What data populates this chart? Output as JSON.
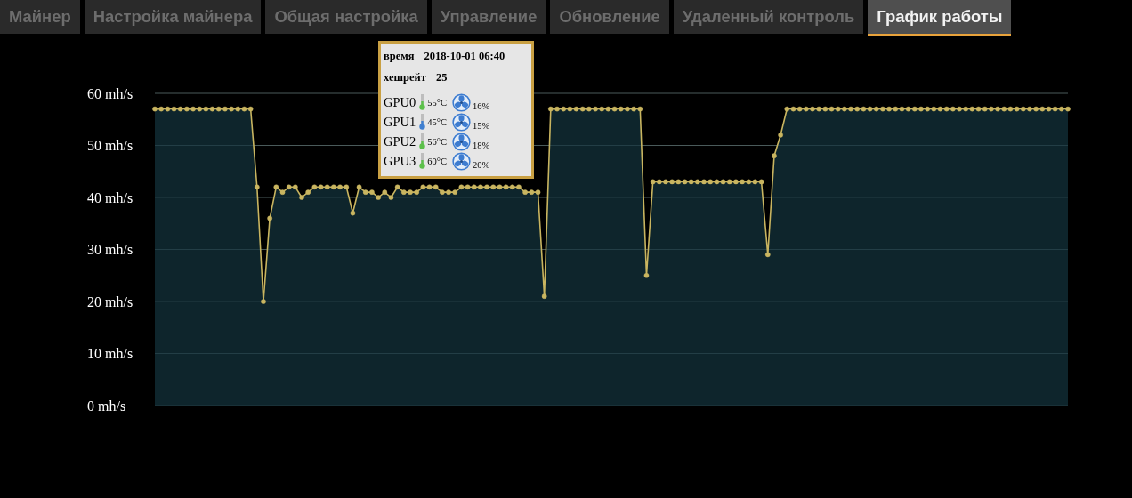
{
  "chart_data": {
    "type": "area",
    "categories": [
      null,
      null,
      null,
      null,
      null,
      null,
      null,
      null,
      null,
      null,
      null,
      null,
      null,
      null,
      null,
      null,
      null,
      null,
      null,
      null,
      null,
      null,
      null,
      null,
      null,
      null,
      null,
      null,
      null,
      null,
      null,
      null,
      null,
      null,
      null,
      null,
      null,
      null,
      null,
      null,
      null,
      null,
      null,
      null,
      null,
      null,
      null,
      null,
      null,
      null,
      null,
      null,
      null,
      null,
      null,
      null,
      null,
      null,
      null,
      null,
      null,
      null,
      null,
      null,
      null,
      null,
      null,
      null,
      null,
      null,
      null,
      null,
      null,
      null,
      null,
      null,
      null,
      null,
      null,
      null,
      null,
      null,
      null,
      null,
      null,
      null,
      null,
      null,
      null,
      null,
      null,
      null,
      null,
      null,
      null,
      null,
      null,
      null,
      null,
      null,
      null,
      null,
      null,
      null,
      null,
      null,
      null,
      null,
      null,
      null,
      null,
      null,
      null,
      null,
      null,
      null,
      null,
      null,
      null,
      null,
      null,
      null,
      null,
      null,
      null,
      null,
      null,
      null,
      null,
      null,
      null,
      null,
      null,
      null,
      null,
      null,
      null,
      null,
      null,
      null,
      null,
      null,
      null,
      null
    ],
    "series": [
      {
        "color": "#c9b560",
        "values": [
          57,
          57,
          57,
          57,
          57,
          57,
          57,
          57,
          57,
          57,
          57,
          57,
          57,
          57,
          57,
          57,
          42,
          20,
          36,
          42,
          41,
          42,
          42,
          40,
          41,
          42,
          42,
          42,
          42,
          42,
          42,
          37,
          42,
          41,
          41,
          40,
          41,
          40,
          42,
          41,
          41,
          41,
          42,
          42,
          42,
          41,
          41,
          41,
          42,
          42,
          42,
          42,
          42,
          42,
          42,
          42,
          42,
          42,
          41,
          41,
          41,
          21,
          57,
          57,
          57,
          57,
          57,
          57,
          57,
          57,
          57,
          57,
          57,
          57,
          57,
          57,
          57,
          25,
          43,
          43,
          43,
          43,
          43,
          43,
          43,
          43,
          43,
          43,
          43,
          43,
          43,
          43,
          43,
          43,
          43,
          43,
          29,
          48,
          52,
          57,
          57,
          57,
          57,
          57,
          57,
          57,
          57,
          57,
          57,
          57,
          57,
          57,
          57,
          57,
          57,
          57,
          57,
          57,
          57,
          57,
          57,
          57,
          57,
          57,
          57,
          57,
          57,
          57,
          57,
          57,
          57,
          57,
          57,
          57,
          57,
          57,
          57,
          57,
          57,
          57,
          57,
          57,
          57,
          57
        ]
      }
    ],
    "ylim": [
      0,
      60
    ],
    "yticks": [
      {
        "value": 0,
        "label": "0 mh/s"
      },
      {
        "value": 10,
        "label": "10 mh/s"
      },
      {
        "value": 20,
        "label": "20 mh/s"
      },
      {
        "value": 30,
        "label": "30 mh/s"
      },
      {
        "value": 40,
        "label": "40 mh/s"
      },
      {
        "value": 50,
        "label": "50 mh/s"
      },
      {
        "value": 60,
        "label": "60 mh/s"
      }
    ],
    "grid": "y",
    "tick_labels": "y",
    "marker": "circle",
    "annotations": [
      "Майнер",
      "Настройка майнера",
      "Общая настройка",
      "Управление",
      "Обновление",
      "Удаленный контроль",
      "График работы",
      "время 2018-10-01 06:40",
      "хешрейт 25",
      "GPU0 55°C 16%",
      "GPU1 45°C 15%",
      "GPU2 56°C 18%",
      "GPU3 60°C 20%"
    ]
  }
}
